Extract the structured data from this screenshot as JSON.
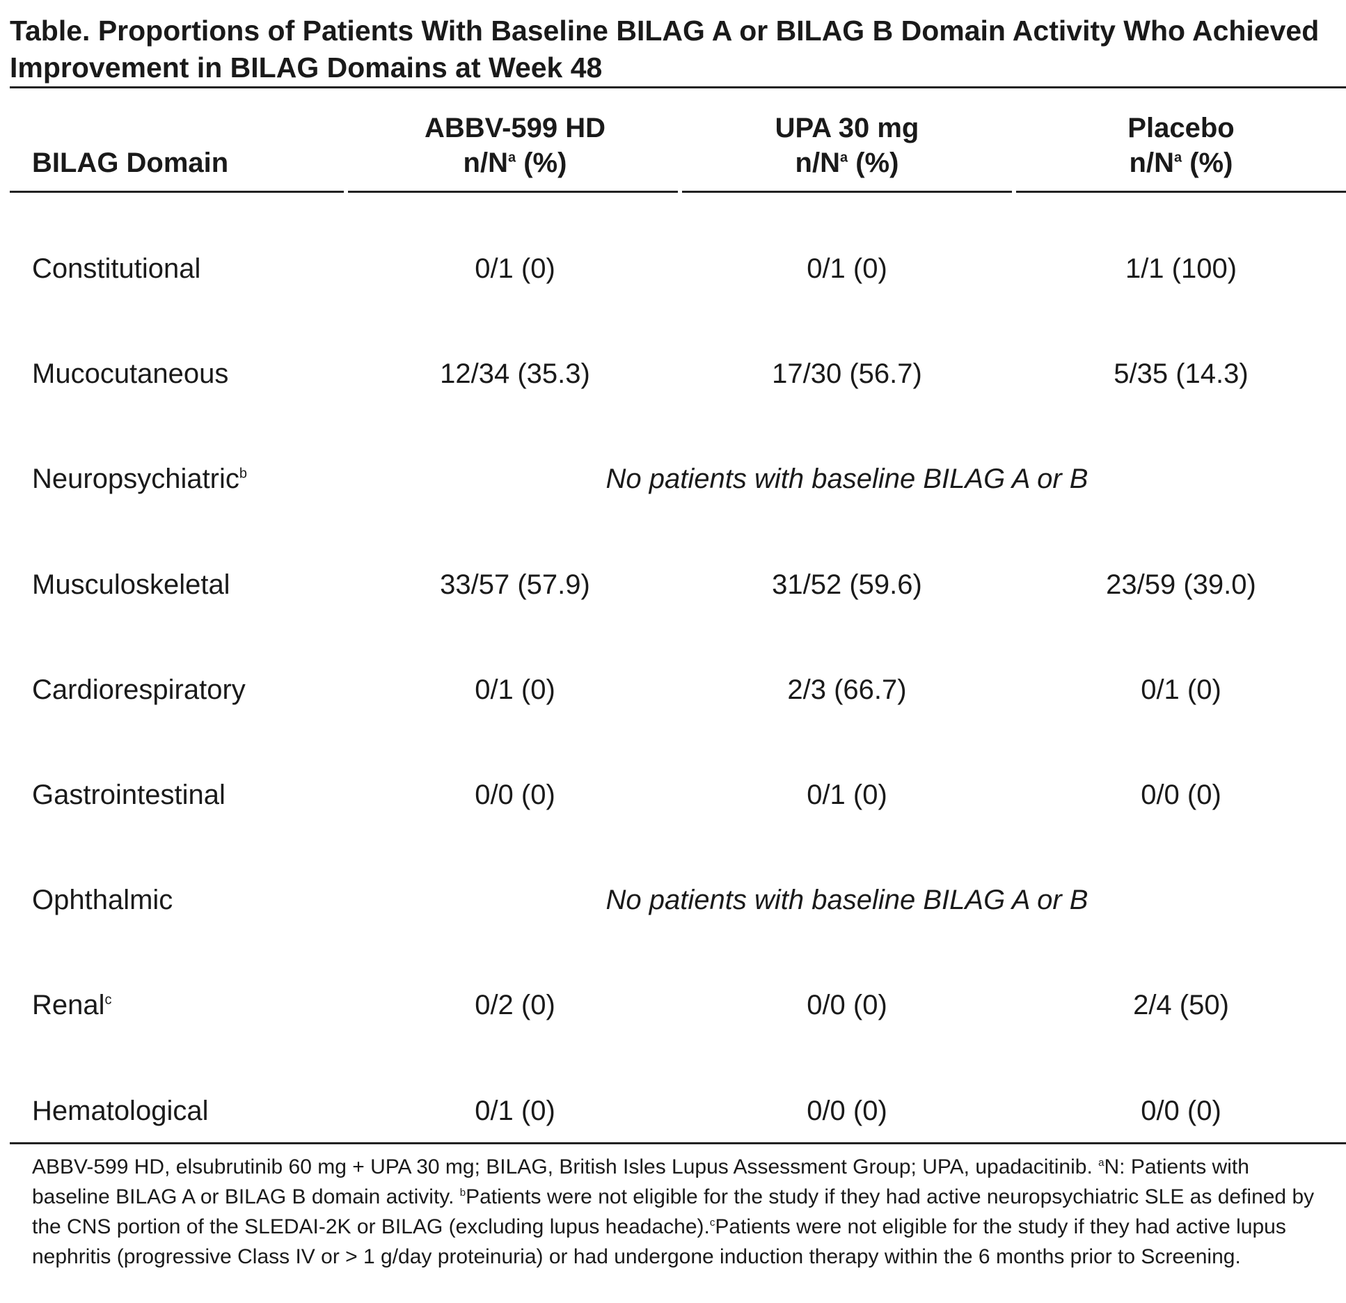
{
  "title": "Table. Proportions of Patients With Baseline BILAG A or BILAG B Domain Activity Who Achieved Improvement in BILAG Domains at Week 48",
  "table": {
    "header": [
      {
        "name": "BILAG Domain"
      },
      {
        "name": "ABBV-599 HD",
        "unit": "n/N",
        "unit_sup": "a",
        "unit_post": " (%)"
      },
      {
        "name": "UPA 30 mg",
        "unit": "n/N",
        "unit_sup": "a",
        "unit_post": " (%)"
      },
      {
        "name": "Placebo",
        "unit": "n/N",
        "unit_sup": "a",
        "unit_post": " (%)"
      }
    ],
    "rows": [
      {
        "domain": "Constitutional",
        "cells": [
          "0/1 (0)",
          "0/1 (0)",
          "1/1 (100)"
        ]
      },
      {
        "domain": "Mucocutaneous",
        "cells": [
          "12/34 (35.3)",
          "17/30 (56.7)",
          "5/35 (14.3)"
        ]
      },
      {
        "domain": "Neuropsychiatric",
        "sup": "b",
        "note": "No patients with baseline BILAG A or B"
      },
      {
        "domain": "Musculoskeletal",
        "cells": [
          "33/57 (57.9)",
          "31/52 (59.6)",
          "23/59 (39.0)"
        ]
      },
      {
        "domain": "Cardiorespiratory",
        "cells": [
          "0/1 (0)",
          "2/3 (66.7)",
          "0/1 (0)"
        ]
      },
      {
        "domain": "Gastrointestinal",
        "cells": [
          "0/0 (0)",
          "0/1 (0)",
          "0/0 (0)"
        ]
      },
      {
        "domain": "Ophthalmic",
        "note": "No patients with baseline BILAG A or B"
      },
      {
        "domain": "Renal",
        "sup": "c",
        "cells": [
          "0/2 (0)",
          "0/0 (0)",
          "2/4 (50)"
        ]
      },
      {
        "domain": "Hematological",
        "cells": [
          "0/1 (0)",
          "0/0 (0)",
          "0/0 (0)"
        ]
      }
    ]
  },
  "footnote": [
    {
      "text": "ABBV-599 HD, elsubrutinib 60 mg + UPA 30 mg; BILAG, British Isles Lupus Assessment Group; UPA, upadacitinib. "
    },
    {
      "sup": "a"
    },
    {
      "text": "N: Patients with baseline BILAG A or BILAG B domain activity. "
    },
    {
      "sup": "b"
    },
    {
      "text": "Patients were not eligible for the study if they had active neuropsychiatric SLE as defined by the CNS portion of the SLEDAI-2K or BILAG (excluding lupus headache)."
    },
    {
      "sup": "c"
    },
    {
      "text": "Patients were not eligible for the study if they had active lupus nephritis (progressive Class IV or > 1 g/day proteinuria) or had undergone induction therapy within the 6 months prior to Screening."
    }
  ]
}
